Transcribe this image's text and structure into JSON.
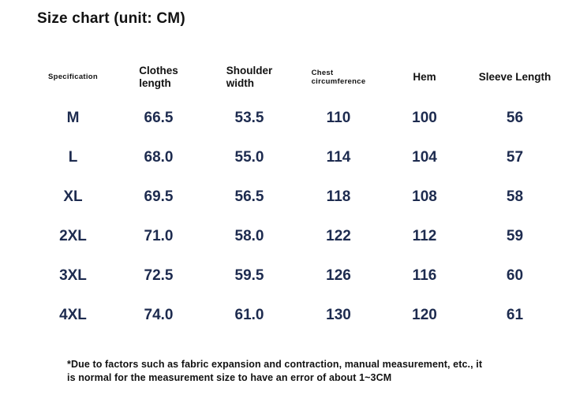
{
  "title": "Size chart (unit: CM)",
  "colors": {
    "heading_text": "#121212",
    "data_text": "#1d2b4f",
    "background": "#ffffff"
  },
  "table": {
    "columns": [
      {
        "key": "specification",
        "label": "Specification",
        "lines": [
          "Specification"
        ],
        "emphasis": "small"
      },
      {
        "key": "clothes-length",
        "label": "Clothes length",
        "lines": [
          "Clothes",
          "length"
        ],
        "emphasis": "large"
      },
      {
        "key": "shoulder-width",
        "label": "Shoulder width",
        "lines": [
          "Shoulder",
          "width"
        ],
        "emphasis": "large"
      },
      {
        "key": "chest-circumference",
        "label": "Chest circumference",
        "lines": [
          "Chest",
          "circumference"
        ],
        "emphasis": "small"
      },
      {
        "key": "hem",
        "label": "Hem",
        "lines": [
          "Hem"
        ],
        "emphasis": "large"
      },
      {
        "key": "sleeve-length",
        "label": "Sleeve Length",
        "lines": [
          "Sleeve Length"
        ],
        "emphasis": "large"
      }
    ],
    "rows": [
      [
        "M",
        "66.5",
        "53.5",
        "110",
        "100",
        "56"
      ],
      [
        "L",
        "68.0",
        "55.0",
        "114",
        "104",
        "57"
      ],
      [
        "XL",
        "69.5",
        "56.5",
        "118",
        "108",
        "58"
      ],
      [
        "2XL",
        "71.0",
        "58.0",
        "122",
        "112",
        "59"
      ],
      [
        "3XL",
        "72.5",
        "59.5",
        "126",
        "116",
        "60"
      ],
      [
        "4XL",
        "74.0",
        "61.0",
        "130",
        "120",
        "61"
      ]
    ]
  },
  "footnote": {
    "lines": [
      "*Due to factors such as fabric expansion and contraction, manual measurement, etc., it",
      "is normal for the measurement size to have an error of about 1~3CM"
    ]
  },
  "chart_data": {
    "type": "table",
    "title": "Size chart (unit: CM)",
    "unit": "CM",
    "columns": [
      "Specification",
      "Clothes length",
      "Shoulder width",
      "Chest circumference",
      "Hem",
      "Sleeve Length"
    ],
    "rows": [
      [
        "M",
        66.5,
        53.5,
        110,
        100,
        56
      ],
      [
        "L",
        68.0,
        55.0,
        114,
        104,
        57
      ],
      [
        "XL",
        69.5,
        56.5,
        118,
        108,
        58
      ],
      [
        "2XL",
        71.0,
        58.0,
        122,
        112,
        59
      ],
      [
        "3XL",
        72.5,
        59.5,
        126,
        116,
        60
      ],
      [
        "4XL",
        74.0,
        61.0,
        130,
        120,
        61
      ]
    ],
    "footnote": "*Due to factors such as fabric expansion and contraction, manual measurement, etc., it is normal for the measurement size to have an error of about 1~3CM"
  }
}
